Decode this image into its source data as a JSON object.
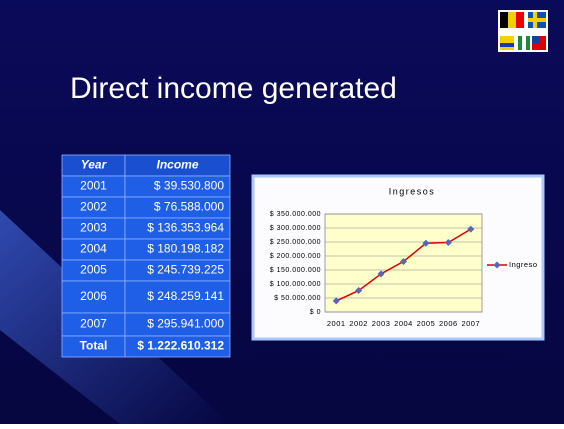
{
  "title": "Direct income generated",
  "table": {
    "header": [
      "Year",
      "Income"
    ],
    "rows": [
      [
        "2001",
        "$ 39.530.800"
      ],
      [
        "2002",
        "$ 76.588.000"
      ],
      [
        "2003",
        "$ 136.353.964"
      ],
      [
        "2004",
        "$ 180.198.182"
      ],
      [
        "2005",
        "$ 245.739.225"
      ],
      [
        "2006",
        "$ 248.259.141"
      ],
      [
        "2007",
        "$ 295.941.000"
      ],
      [
        "Total",
        "$ 1.222.610.312"
      ]
    ]
  },
  "chart_data": {
    "type": "line",
    "title": "Ingresos",
    "categories": [
      "2001",
      "2002",
      "2003",
      "2004",
      "2005",
      "2006",
      "2007"
    ],
    "series": [
      {
        "name": "Ingreso",
        "color": "#e00000",
        "marker_color": "#5566bb",
        "values": [
          39530800,
          76588000,
          136353964,
          180198182,
          245739225,
          248259141,
          295941000
        ]
      }
    ],
    "ylim": [
      0,
      350000000
    ],
    "yticks": [
      {
        "value": 0,
        "label": "$ 0"
      },
      {
        "value": 50000000,
        "label": "$ 50.000.000"
      },
      {
        "value": 100000000,
        "label": "$ 100.000.000"
      },
      {
        "value": 150000000,
        "label": "$ 150.000.000"
      },
      {
        "value": 200000000,
        "label": "$ 200.000.000"
      },
      {
        "value": 250000000,
        "label": "$ 250.000.000"
      },
      {
        "value": 300000000,
        "label": "$ 300.000.000"
      },
      {
        "value": 350000000,
        "label": "$ 350.000.000"
      }
    ],
    "grid": true,
    "legend": "right"
  }
}
